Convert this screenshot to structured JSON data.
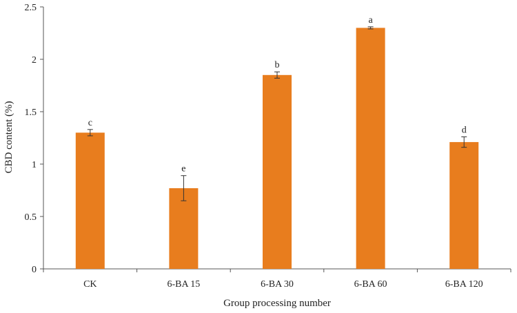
{
  "chart_data": {
    "type": "bar",
    "title": "",
    "xlabel": "Group processing number",
    "ylabel": "CBD content (%)",
    "categories": [
      "CK",
      "6-BA 15",
      "6-BA 30",
      "6-BA 60",
      "6-BA 120"
    ],
    "values": [
      1.3,
      0.77,
      1.85,
      2.3,
      1.21
    ],
    "errors": [
      0.03,
      0.12,
      0.03,
      0.01,
      0.05
    ],
    "significance": [
      "c",
      "e",
      "b",
      "a",
      "d"
    ],
    "ylim": [
      0,
      2.5
    ],
    "yticks": [
      "0",
      "0.5",
      "1",
      "1.5",
      "2",
      "2.5"
    ],
    "grid": false,
    "legend": "none",
    "colors": {
      "bar": "#e87d1e",
      "axis": "#555555",
      "error": "#333333"
    }
  }
}
